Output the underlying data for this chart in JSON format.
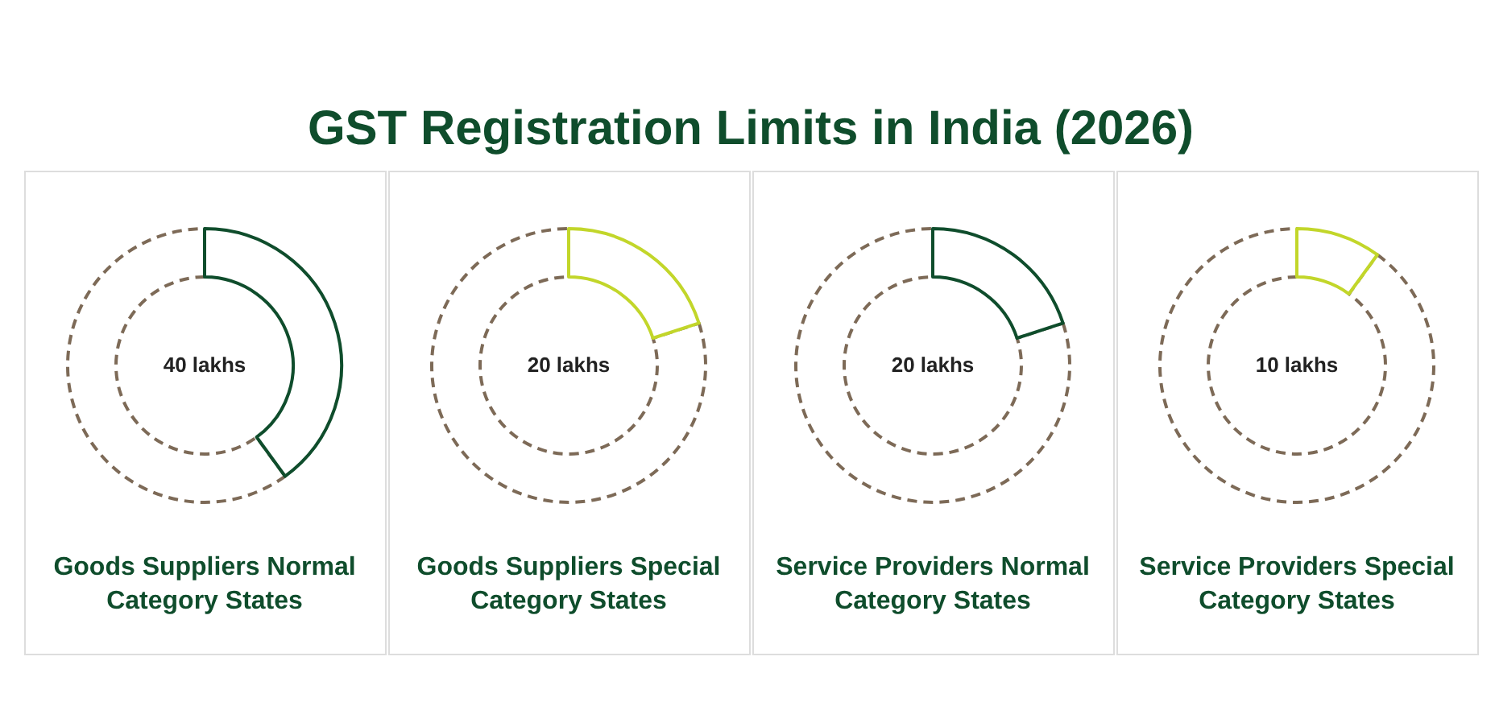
{
  "chart_data": [
    {
      "type": "donut",
      "title": "GST Registration Limits in India (2026)",
      "categories": [
        null,
        null
      ],
      "values": [
        40,
        60
      ],
      "colors": [
        "#0f4d2c",
        "#7d6a57"
      ],
      "value_labels": [
        "40 lakhs",
        null
      ],
      "xlabel": "Goods Suppliers Normal Category States"
    },
    {
      "type": "donut",
      "categories": [
        null,
        null
      ],
      "values": [
        20,
        80
      ],
      "colors": [
        "#c2d62a",
        "#7d6a57"
      ],
      "value_labels": [
        "20 lakhs",
        null
      ],
      "xlabel": "Goods Suppliers Special Category States"
    },
    {
      "type": "donut",
      "categories": [
        null,
        null
      ],
      "values": [
        20,
        80
      ],
      "colors": [
        "#0f4d2c",
        "#7d6a57"
      ],
      "value_labels": [
        "20 lakhs",
        null
      ],
      "xlabel": "Service Providers Normal Category States"
    },
    {
      "type": "donut",
      "categories": [
        null,
        null
      ],
      "values": [
        10,
        90
      ],
      "colors": [
        "#c2d62a",
        "#7d6a57"
      ],
      "value_labels": [
        "10 lakhs",
        null
      ],
      "xlabel": "Service Providers Special Category States"
    }
  ]
}
